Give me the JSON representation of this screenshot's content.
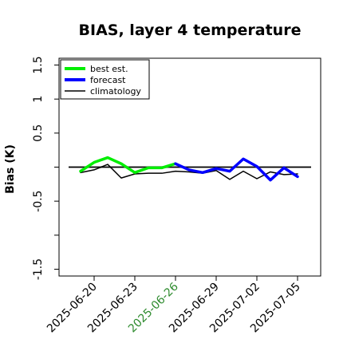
{
  "chart_data": {
    "type": "line",
    "title": "BIAS, layer 4 temperature",
    "ylabel": "Bias (K)",
    "xlabel": "",
    "ylim": [
      -1.6,
      1.6
    ],
    "yticks": [
      -1.5,
      -0.5,
      0.5,
      1.0,
      1.5
    ],
    "xticks": [
      {
        "label": "2025-06-20",
        "color": "#000000"
      },
      {
        "label": "2025-06-23",
        "color": "#000000"
      },
      {
        "label": "2025-06-26",
        "color": "#2e8b2e"
      },
      {
        "label": "2025-06-29",
        "color": "#000000"
      },
      {
        "label": "2025-07-02",
        "color": "#000000"
      },
      {
        "label": "2025-07-05",
        "color": "#000000"
      }
    ],
    "x_start": "2025-06-19",
    "reference_line": 0.0,
    "grid": false,
    "legend_position": "upper-left",
    "series": [
      {
        "name": "best est.",
        "color": "#00ee00",
        "x": [
          "2025-06-19",
          "2025-06-20",
          "2025-06-21",
          "2025-06-22",
          "2025-06-23",
          "2025-06-24",
          "2025-06-25",
          "2025-06-26"
        ],
        "values": [
          -0.06,
          0.07,
          0.14,
          0.05,
          -0.08,
          -0.01,
          -0.01,
          0.05
        ]
      },
      {
        "name": "forecast",
        "color": "#0000ff",
        "x": [
          "2025-06-26",
          "2025-06-27",
          "2025-06-28",
          "2025-06-29",
          "2025-06-30",
          "2025-07-01",
          "2025-07-02",
          "2025-07-03",
          "2025-07-04",
          "2025-07-05"
        ],
        "values": [
          0.05,
          -0.04,
          -0.08,
          -0.02,
          -0.06,
          0.12,
          0.01,
          -0.19,
          -0.01,
          -0.14
        ]
      },
      {
        "name": "climatology",
        "color": "#000000",
        "x": [
          "2025-06-19",
          "2025-06-20",
          "2025-06-21",
          "2025-06-22",
          "2025-06-23",
          "2025-06-24",
          "2025-06-25",
          "2025-06-26",
          "2025-06-27",
          "2025-06-28",
          "2025-06-29",
          "2025-06-30",
          "2025-07-01",
          "2025-07-02",
          "2025-07-03",
          "2025-07-04",
          "2025-07-05"
        ],
        "values": [
          -0.08,
          -0.04,
          0.04,
          -0.16,
          -0.1,
          -0.09,
          -0.09,
          -0.06,
          -0.07,
          -0.09,
          -0.05,
          -0.18,
          -0.06,
          -0.17,
          -0.07,
          -0.11,
          -0.1
        ]
      }
    ]
  }
}
